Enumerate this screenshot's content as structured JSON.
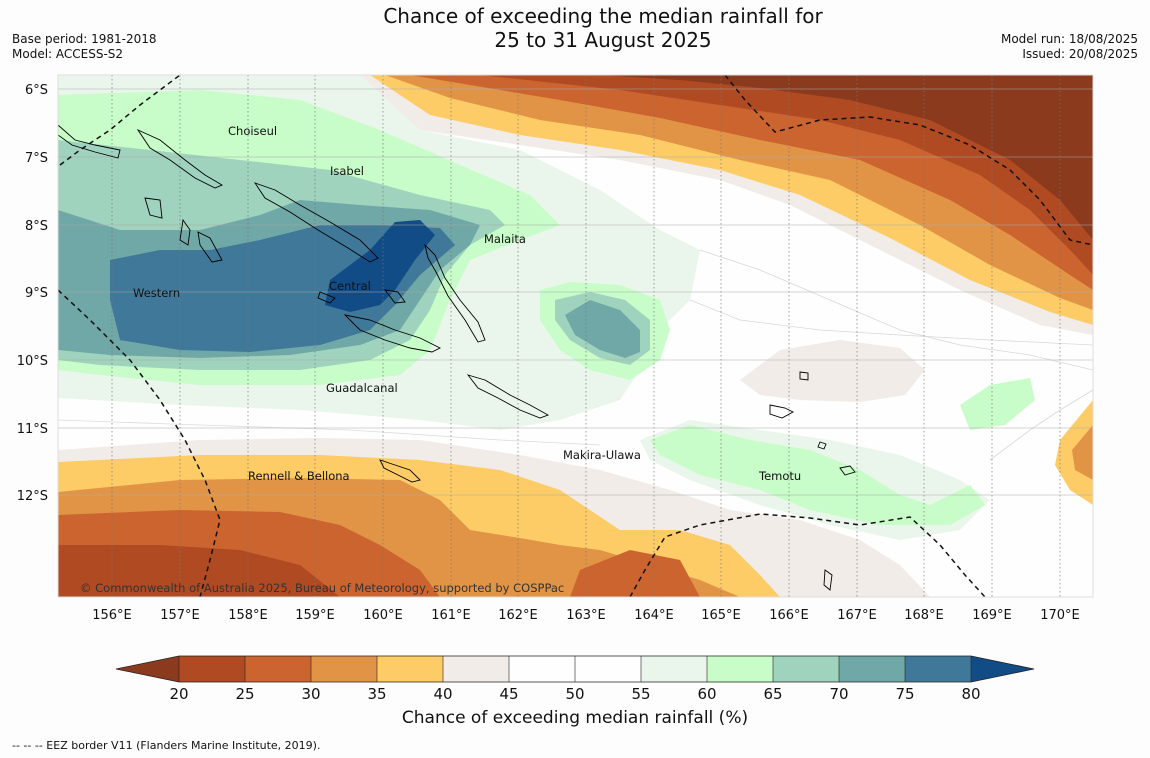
{
  "header": {
    "title_line1": "Chance of exceeding the median rainfall for",
    "title_line2": "25 to 31 August 2025",
    "base_period": "Base period: 1981-2018",
    "model": "Model: ACCESS-S2",
    "model_run": "Model run: 18/08/2025",
    "issued": "Issued: 20/08/2025"
  },
  "map": {
    "lat_labels": [
      "6°S",
      "7°S",
      "8°S",
      "9°S",
      "10°S",
      "11°S",
      "12°S"
    ],
    "lon_labels": [
      "156°E",
      "157°E",
      "158°E",
      "159°E",
      "160°E",
      "161°E",
      "162°E",
      "163°E",
      "164°E",
      "165°E",
      "166°E",
      "167°E",
      "168°E",
      "169°E",
      "170°E"
    ],
    "regions": [
      "Choiseul",
      "Isabel",
      "Malaita",
      "Western",
      "Central",
      "Guadalcanal",
      "Makira-Ulawa",
      "Rennell & Bellona",
      "Temotu"
    ],
    "copyright": "© Commonwealth of Australia 2025, Bureau of Meteorology, supported by COSPPac"
  },
  "colorbar": {
    "ticks": [
      "20",
      "25",
      "30",
      "35",
      "40",
      "45",
      "50",
      "55",
      "60",
      "65",
      "70",
      "75",
      "80"
    ],
    "label": "Chance of exceeding median rainfall (%)",
    "colors": {
      "lt20": "#8b3a1e",
      "c20_25": "#b04a22",
      "c25_30": "#cc6430",
      "c30_35": "#e29446",
      "c35_40": "#fdcc66",
      "c40_45": "#f1ece8",
      "c45_50": "#fefefe",
      "c50_55": "#fefefe",
      "c55_60": "#eaf6ec",
      "c60_65": "#c8fcc8",
      "c65_70": "#9fd3bd",
      "c70_75": "#70a8a7",
      "c75_80": "#3f7898",
      "gt80": "#124c86"
    }
  },
  "footnote": "--  --  -- EEZ border V11 (Flanders Marine Institute, 2019)."
}
